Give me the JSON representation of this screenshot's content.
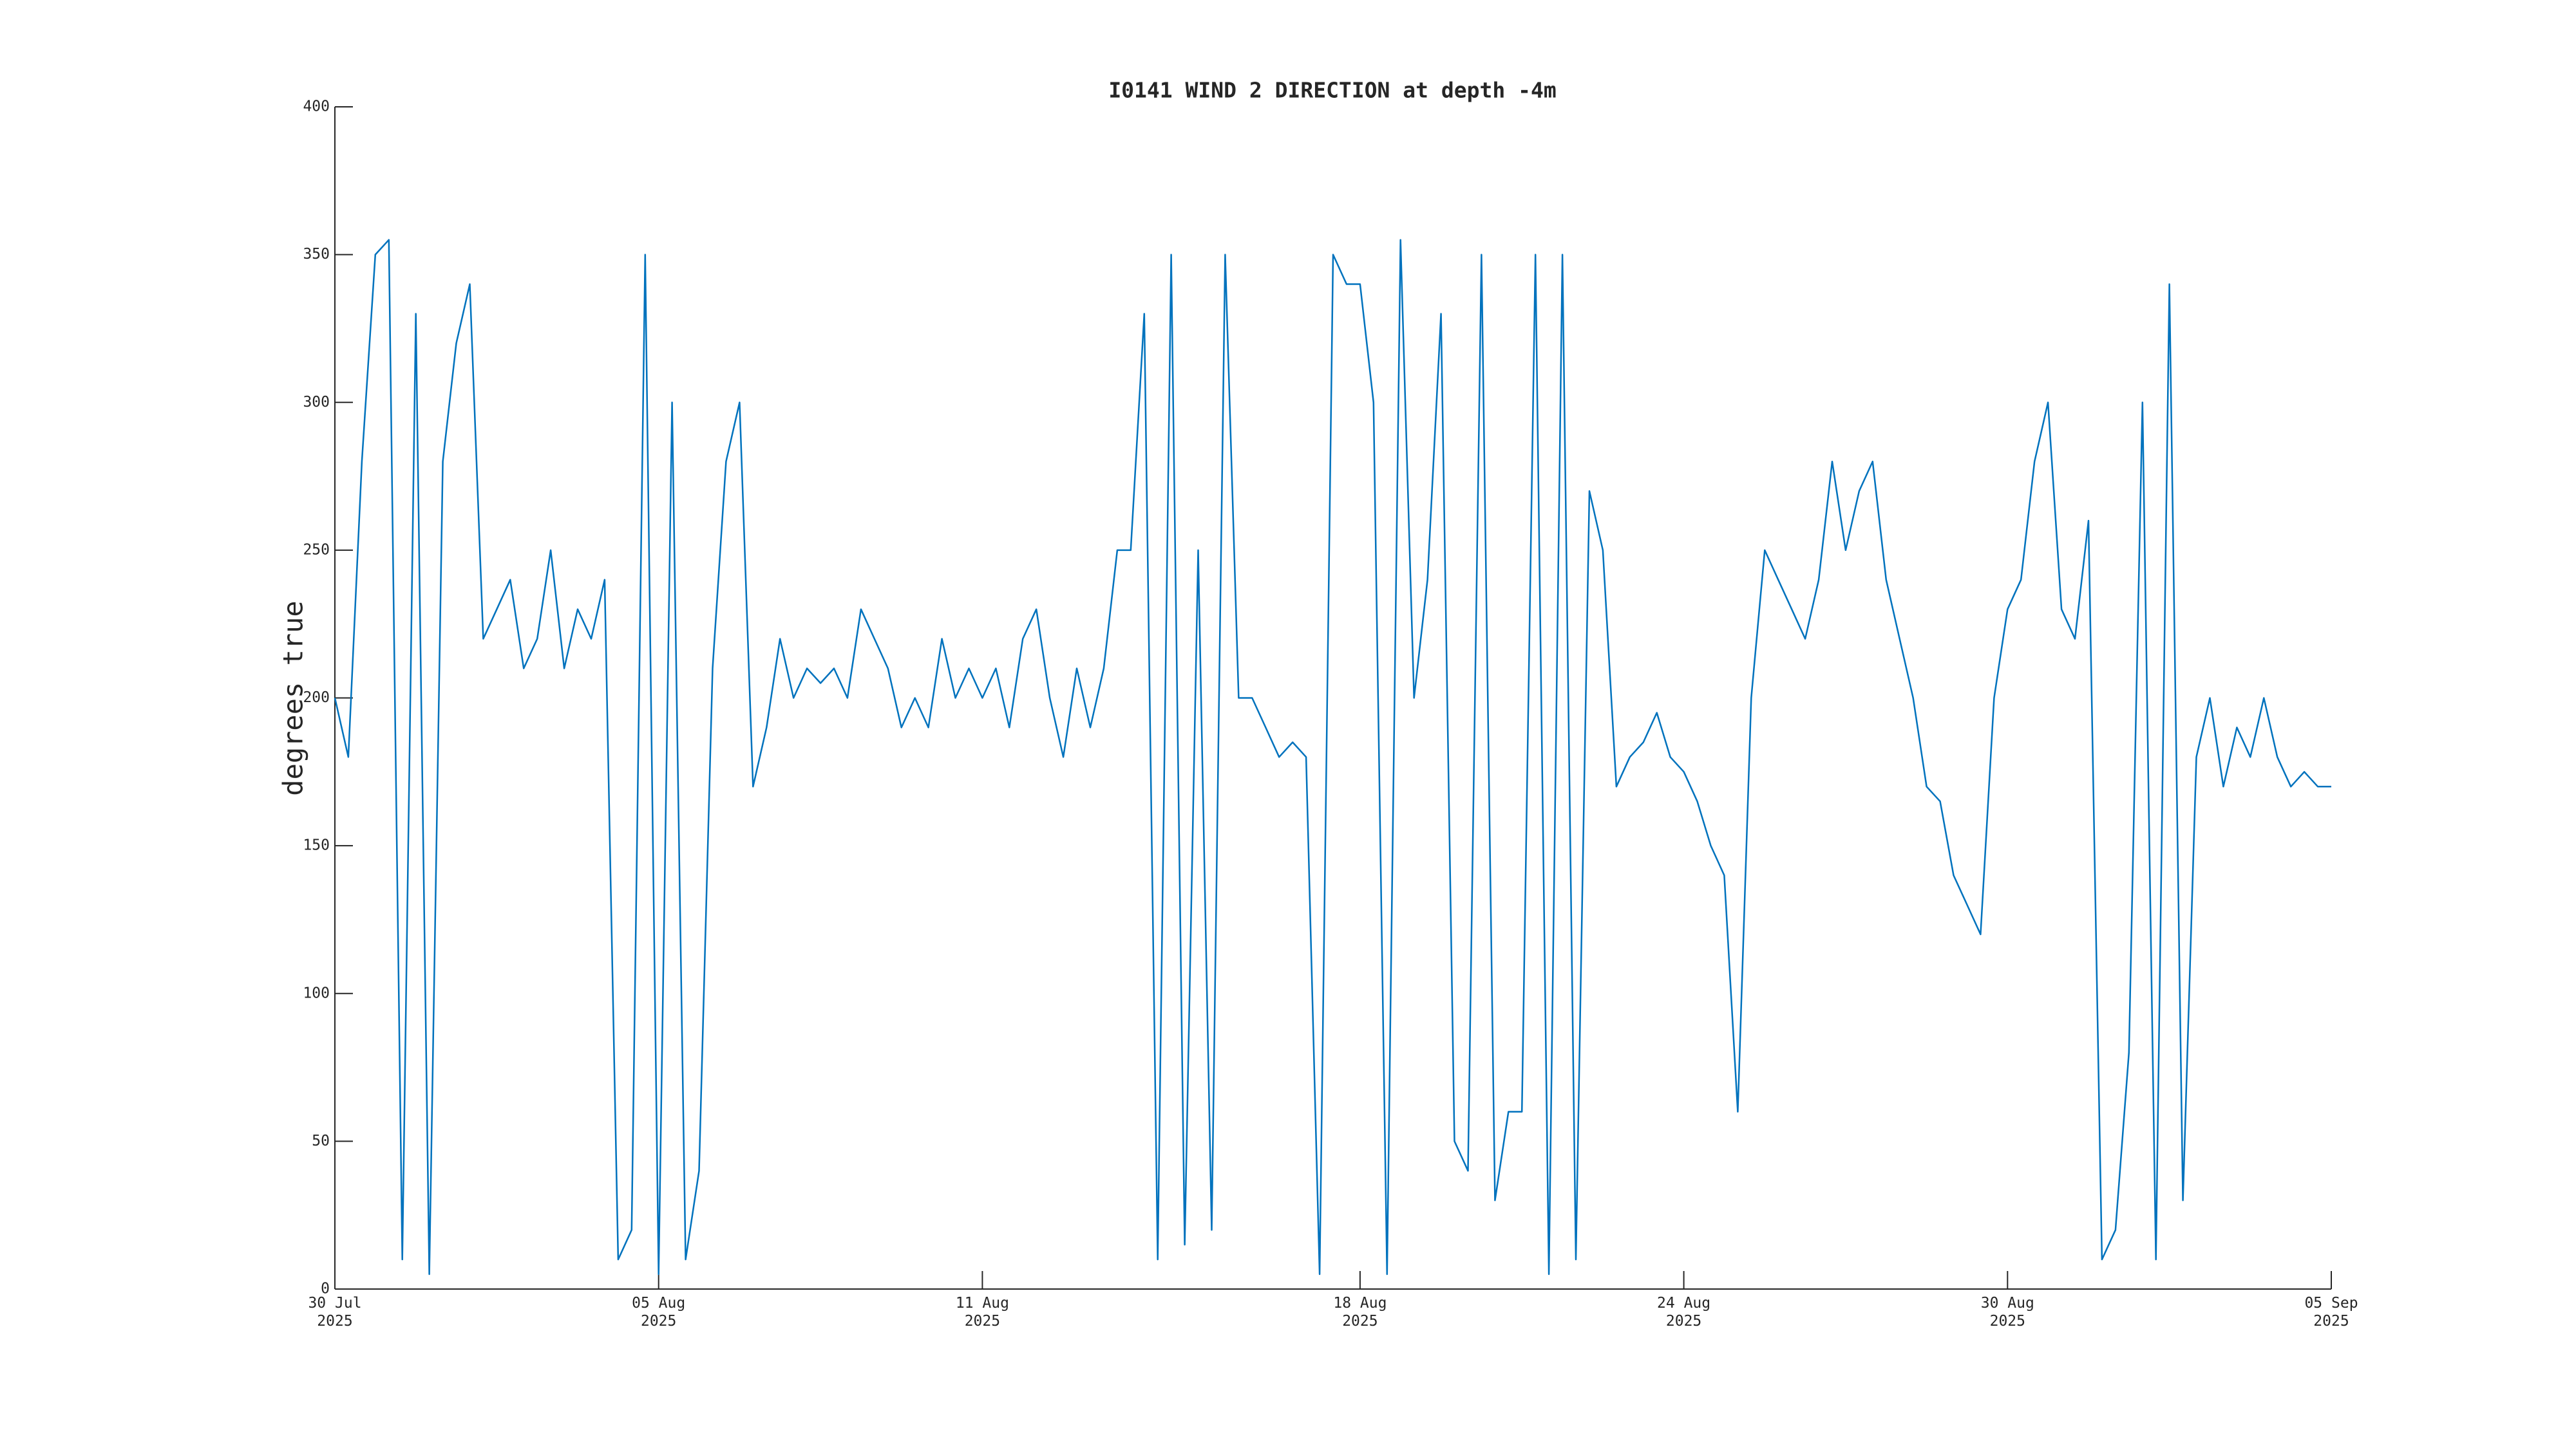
{
  "chart_data": {
    "type": "line",
    "title": "I0141 WIND 2 DIRECTION at depth -4m",
    "y_label": "degrees true",
    "color": "#0072bd",
    "xlim": [
      "2025-07-30T00:00",
      "2025-09-05T00:00"
    ],
    "xticks": [
      {
        "value": "2025-07-30T00:00",
        "label": "30 Jul\n2025"
      },
      {
        "value": "2025-08-05T00:00",
        "label": "05 Aug\n2025"
      },
      {
        "value": "2025-08-11T00:00",
        "label": "11 Aug\n2025"
      },
      {
        "value": "2025-08-18T00:00",
        "label": "18 Aug\n2025"
      },
      {
        "value": "2025-08-24T00:00",
        "label": "24 Aug\n2025"
      },
      {
        "value": "2025-08-30T00:00",
        "label": "30 Aug\n2025"
      },
      {
        "value": "2025-09-05T00:00",
        "label": "05 Sep\n2025"
      }
    ],
    "ylim": [
      0,
      400
    ],
    "yticks": [
      0,
      50,
      100,
      150,
      200,
      250,
      300,
      350,
      400
    ],
    "x": [
      "2025-07-30T00:00",
      "2025-07-30T06:00",
      "2025-07-30T12:00",
      "2025-07-30T18:00",
      "2025-07-31T00:00",
      "2025-07-31T06:00",
      "2025-07-31T12:00",
      "2025-07-31T18:00",
      "2025-08-01T00:00",
      "2025-08-01T06:00",
      "2025-08-01T12:00",
      "2025-08-01T18:00",
      "2025-08-02T00:00",
      "2025-08-02T06:00",
      "2025-08-02T12:00",
      "2025-08-02T18:00",
      "2025-08-03T00:00",
      "2025-08-03T06:00",
      "2025-08-03T12:00",
      "2025-08-03T18:00",
      "2025-08-04T00:00",
      "2025-08-04T06:00",
      "2025-08-04T12:00",
      "2025-08-04T18:00",
      "2025-08-05T00:00",
      "2025-08-05T06:00",
      "2025-08-05T12:00",
      "2025-08-05T18:00",
      "2025-08-06T00:00",
      "2025-08-06T06:00",
      "2025-08-06T12:00",
      "2025-08-06T18:00",
      "2025-08-07T00:00",
      "2025-08-07T06:00",
      "2025-08-07T12:00",
      "2025-08-07T18:00",
      "2025-08-08T00:00",
      "2025-08-08T06:00",
      "2025-08-08T12:00",
      "2025-08-08T18:00",
      "2025-08-09T00:00",
      "2025-08-09T06:00",
      "2025-08-09T12:00",
      "2025-08-09T18:00",
      "2025-08-10T00:00",
      "2025-08-10T06:00",
      "2025-08-10T12:00",
      "2025-08-10T18:00",
      "2025-08-11T00:00",
      "2025-08-11T06:00",
      "2025-08-11T12:00",
      "2025-08-11T18:00",
      "2025-08-12T00:00",
      "2025-08-12T06:00",
      "2025-08-12T12:00",
      "2025-08-12T18:00",
      "2025-08-13T00:00",
      "2025-08-13T06:00",
      "2025-08-13T12:00",
      "2025-08-13T18:00",
      "2025-08-14T00:00",
      "2025-08-14T06:00",
      "2025-08-14T12:00",
      "2025-08-14T18:00",
      "2025-08-15T00:00",
      "2025-08-15T06:00",
      "2025-08-15T12:00",
      "2025-08-15T18:00",
      "2025-08-16T00:00",
      "2025-08-16T06:00",
      "2025-08-16T12:00",
      "2025-08-16T18:00",
      "2025-08-17T00:00",
      "2025-08-17T06:00",
      "2025-08-17T12:00",
      "2025-08-17T18:00",
      "2025-08-18T00:00",
      "2025-08-18T06:00",
      "2025-08-18T12:00",
      "2025-08-18T18:00",
      "2025-08-19T00:00",
      "2025-08-19T06:00",
      "2025-08-19T12:00",
      "2025-08-19T18:00",
      "2025-08-20T00:00",
      "2025-08-20T06:00",
      "2025-08-20T12:00",
      "2025-08-20T18:00",
      "2025-08-21T00:00",
      "2025-08-21T06:00",
      "2025-08-21T12:00",
      "2025-08-21T18:00",
      "2025-08-22T00:00",
      "2025-08-22T06:00",
      "2025-08-22T12:00",
      "2025-08-22T18:00",
      "2025-08-23T00:00",
      "2025-08-23T06:00",
      "2025-08-23T12:00",
      "2025-08-23T18:00",
      "2025-08-24T00:00",
      "2025-08-24T06:00",
      "2025-08-24T12:00",
      "2025-08-24T18:00",
      "2025-08-25T00:00",
      "2025-08-25T06:00",
      "2025-08-25T12:00",
      "2025-08-25T18:00",
      "2025-08-26T00:00",
      "2025-08-26T06:00",
      "2025-08-26T12:00",
      "2025-08-26T18:00",
      "2025-08-27T00:00",
      "2025-08-27T06:00",
      "2025-08-27T12:00",
      "2025-08-27T18:00",
      "2025-08-28T00:00",
      "2025-08-28T06:00",
      "2025-08-28T12:00",
      "2025-08-28T18:00",
      "2025-08-29T00:00",
      "2025-08-29T06:00",
      "2025-08-29T12:00",
      "2025-08-29T18:00",
      "2025-08-30T00:00",
      "2025-08-30T06:00",
      "2025-08-30T12:00",
      "2025-08-30T18:00",
      "2025-08-31T00:00",
      "2025-08-31T06:00",
      "2025-08-31T12:00",
      "2025-08-31T18:00",
      "2025-09-01T00:00",
      "2025-09-01T06:00",
      "2025-09-01T12:00",
      "2025-09-01T18:00",
      "2025-09-02T00:00",
      "2025-09-02T06:00",
      "2025-09-02T12:00",
      "2025-09-02T18:00",
      "2025-09-03T00:00",
      "2025-09-03T06:00",
      "2025-09-03T12:00",
      "2025-09-03T18:00",
      "2025-09-04T00:00",
      "2025-09-04T06:00",
      "2025-09-04T12:00",
      "2025-09-04T18:00",
      "2025-09-05T00:00"
    ],
    "values": [
      200,
      180,
      280,
      350,
      355,
      10,
      330,
      5,
      280,
      320,
      340,
      220,
      230,
      240,
      210,
      220,
      250,
      210,
      230,
      220,
      240,
      10,
      20,
      350,
      5,
      300,
      10,
      40,
      210,
      280,
      300,
      170,
      190,
      220,
      200,
      210,
      205,
      210,
      200,
      230,
      220,
      210,
      190,
      200,
      190,
      220,
      200,
      210,
      200,
      210,
      190,
      220,
      230,
      200,
      180,
      210,
      190,
      210,
      250,
      250,
      330,
      10,
      350,
      15,
      250,
      20,
      350,
      200,
      200,
      190,
      180,
      185,
      180,
      5,
      350,
      340,
      340,
      300,
      5,
      355,
      200,
      240,
      330,
      50,
      40,
      350,
      30,
      60,
      60,
      350,
      5,
      350,
      10,
      270,
      250,
      170,
      180,
      185,
      195,
      180,
      175,
      165,
      150,
      140,
      60,
      200,
      250,
      240,
      230,
      220,
      240,
      280,
      250,
      270,
      280,
      240,
      220,
      200,
      170,
      165,
      140,
      130,
      120,
      200,
      230,
      240,
      280,
      300,
      230,
      220,
      260,
      10,
      20,
      80,
      300,
      10,
      340,
      30,
      180,
      200,
      170,
      190,
      180,
      200,
      180,
      170,
      175,
      170,
      170
    ]
  }
}
